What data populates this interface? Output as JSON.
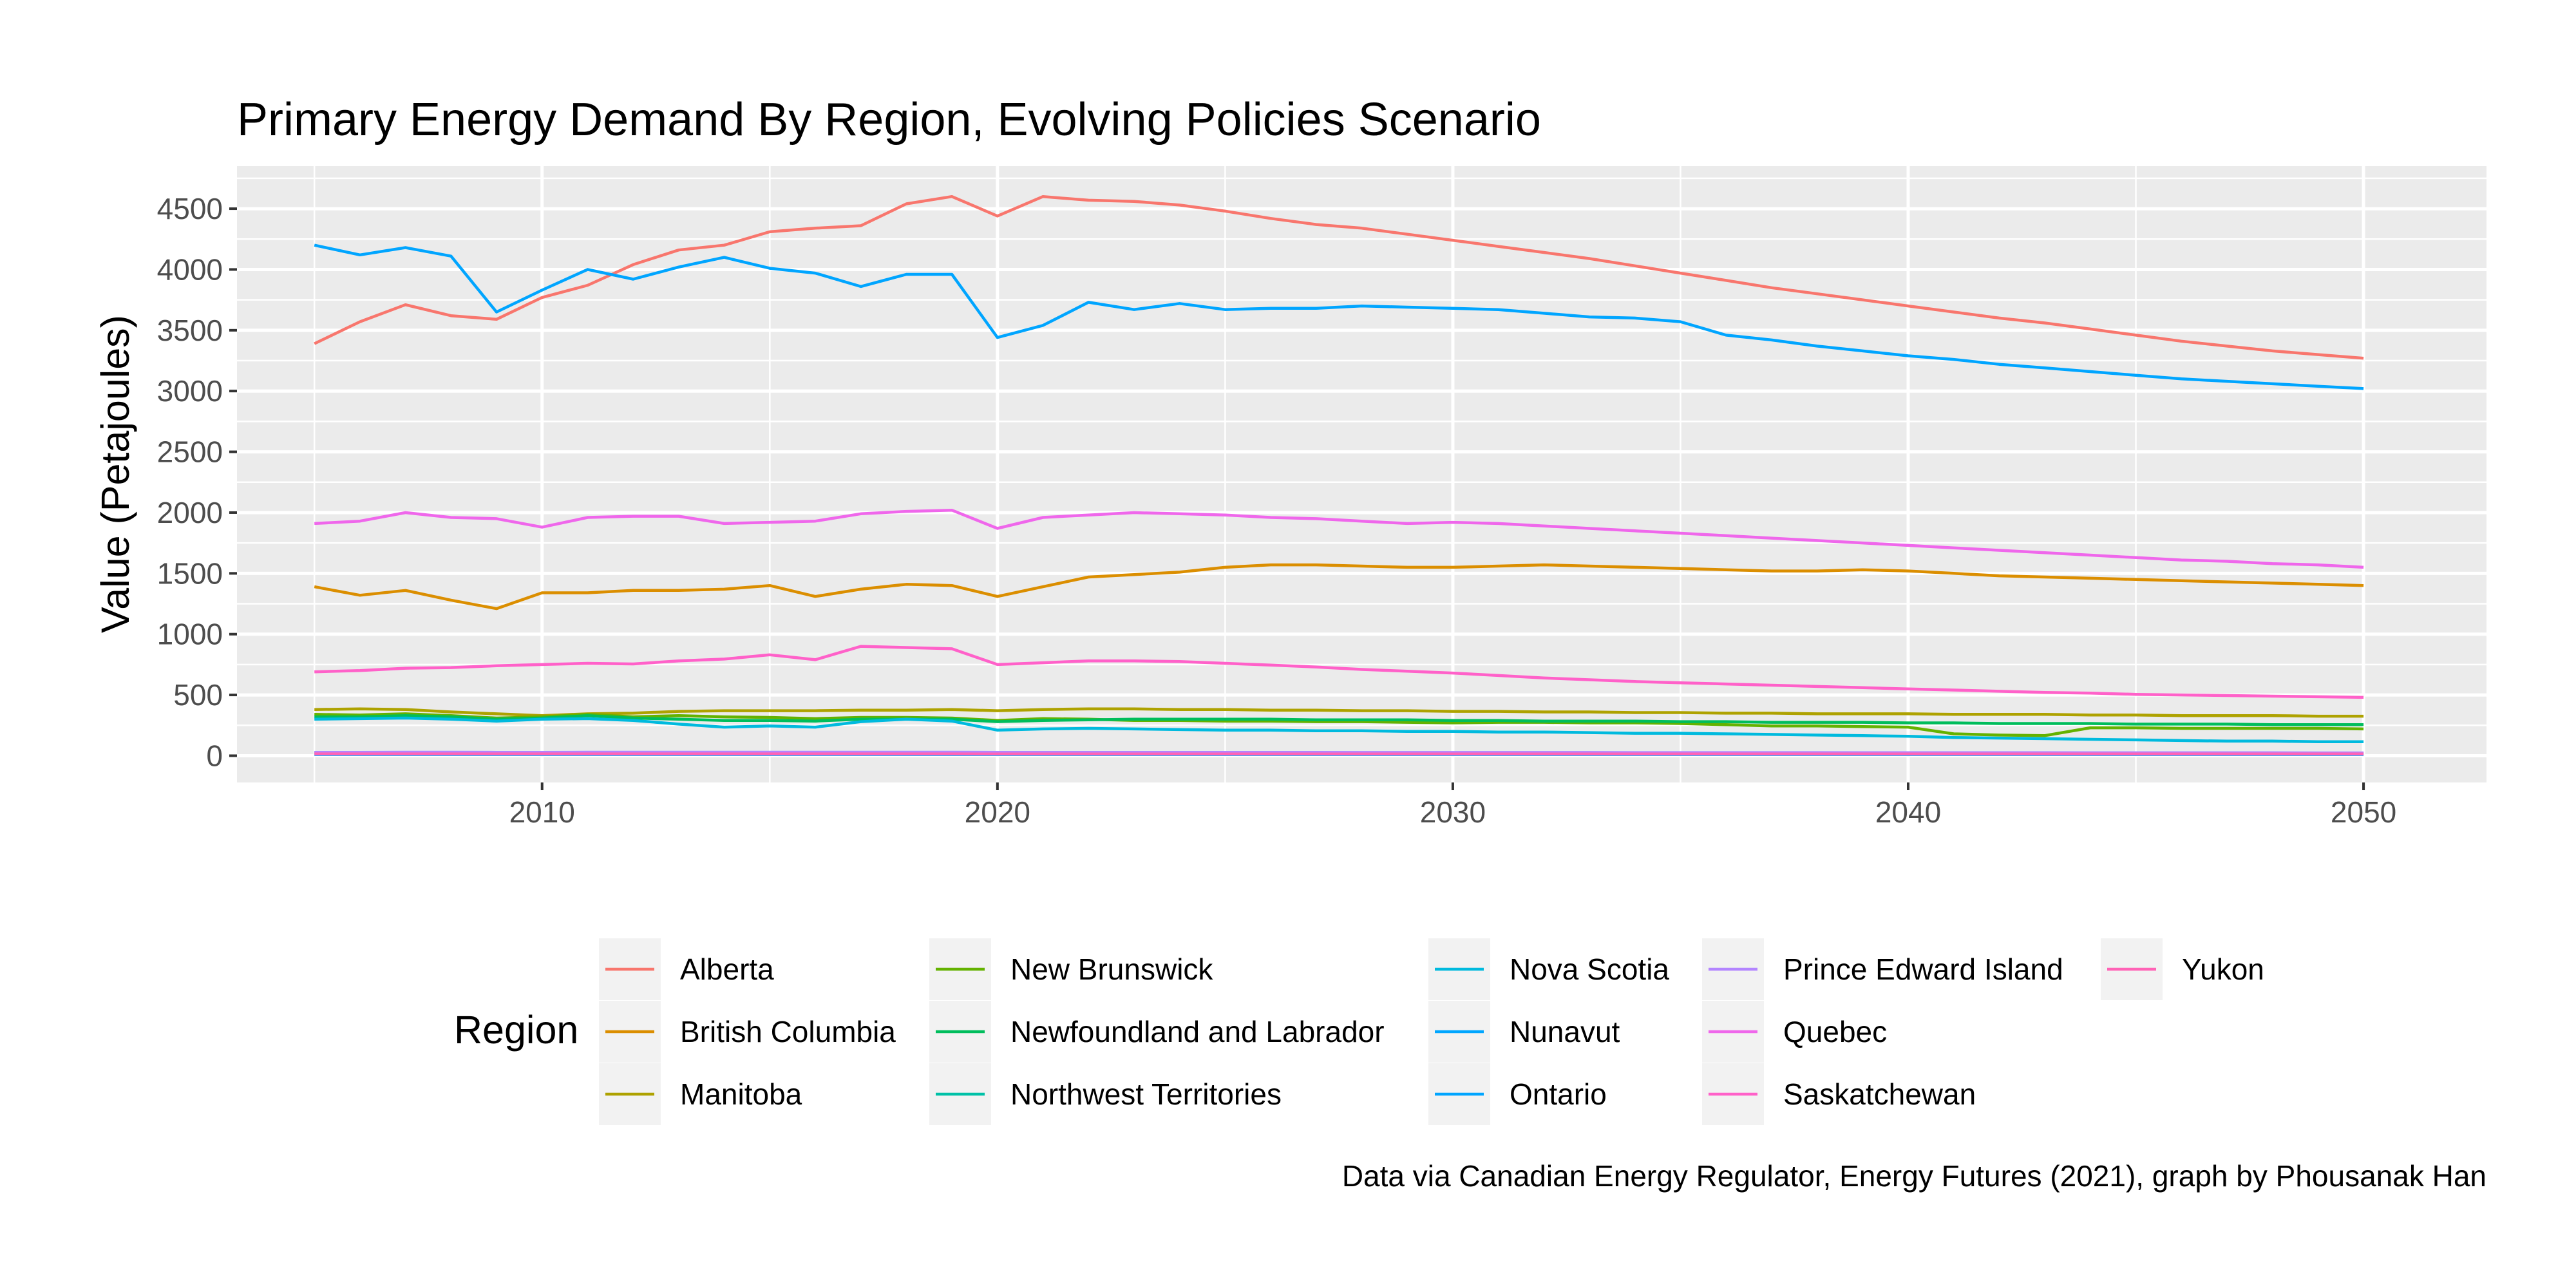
{
  "chart_data": {
    "type": "line",
    "title": "Primary Energy Demand By Region, Evolving Policies Scenario",
    "xlabel": "",
    "ylabel": "Value (Petajoules)",
    "caption": "Data via Canadian Energy Regulator, Energy Futures (2021), graph by Phousanak Han",
    "legend_title": "Region",
    "legend_position": "bottom",
    "grid": true,
    "xlim": [
      2003.3,
      2052.7
    ],
    "ylim": [
      -220,
      4850
    ],
    "x_ticks": [
      2010,
      2020,
      2030,
      2040,
      2050
    ],
    "y_ticks": [
      0,
      500,
      1000,
      1500,
      2000,
      2500,
      3000,
      3500,
      4000,
      4500
    ],
    "x": [
      2005,
      2006,
      2007,
      2008,
      2009,
      2010,
      2011,
      2012,
      2013,
      2014,
      2015,
      2016,
      2017,
      2018,
      2019,
      2020,
      2021,
      2022,
      2023,
      2024,
      2025,
      2026,
      2027,
      2028,
      2029,
      2030,
      2031,
      2032,
      2033,
      2034,
      2035,
      2036,
      2037,
      2038,
      2039,
      2040,
      2041,
      2042,
      2043,
      2044,
      2045,
      2046,
      2047,
      2048,
      2049,
      2050
    ],
    "series": [
      {
        "name": "Alberta",
        "color": "#F8766D",
        "values": [
          3390,
          3570,
          3710,
          3620,
          3590,
          3770,
          3870,
          4040,
          4160,
          4200,
          4310,
          4340,
          4360,
          4540,
          4600,
          4440,
          4600,
          4570,
          4560,
          4530,
          4480,
          4420,
          4370,
          4340,
          4290,
          4240,
          4190,
          4140,
          4090,
          4030,
          3970,
          3910,
          3850,
          3800,
          3750,
          3700,
          3650,
          3600,
          3560,
          3510,
          3460,
          3410,
          3370,
          3330,
          3300,
          3270
        ]
      },
      {
        "name": "British Columbia",
        "color": "#DB8E00",
        "values": [
          1390,
          1320,
          1360,
          1280,
          1210,
          1340,
          1340,
          1360,
          1360,
          1370,
          1400,
          1310,
          1370,
          1410,
          1400,
          1310,
          1390,
          1470,
          1490,
          1510,
          1550,
          1570,
          1570,
          1560,
          1550,
          1550,
          1560,
          1570,
          1560,
          1550,
          1540,
          1530,
          1520,
          1520,
          1530,
          1520,
          1500,
          1480,
          1470,
          1460,
          1450,
          1440,
          1430,
          1420,
          1410,
          1400
        ]
      },
      {
        "name": "Manitoba",
        "color": "#AEA200",
        "values": [
          380,
          385,
          380,
          360,
          345,
          330,
          345,
          350,
          365,
          370,
          370,
          370,
          375,
          375,
          380,
          370,
          380,
          385,
          385,
          380,
          380,
          375,
          375,
          370,
          370,
          365,
          365,
          360,
          360,
          355,
          355,
          350,
          350,
          345,
          345,
          345,
          340,
          340,
          340,
          335,
          335,
          330,
          330,
          330,
          325,
          325
        ]
      },
      {
        "name": "New Brunswick",
        "color": "#64B200",
        "values": [
          340,
          335,
          345,
          330,
          310,
          320,
          340,
          320,
          330,
          320,
          315,
          305,
          315,
          315,
          310,
          290,
          305,
          300,
          290,
          290,
          285,
          285,
          280,
          280,
          275,
          270,
          275,
          275,
          270,
          270,
          265,
          255,
          245,
          245,
          240,
          235,
          180,
          170,
          165,
          230,
          230,
          225,
          225,
          225,
          225,
          220
        ]
      },
      {
        "name": "Newfoundland and Labrador",
        "color": "#00BD5C",
        "values": [
          320,
          320,
          330,
          320,
          300,
          310,
          330,
          310,
          300,
          290,
          290,
          285,
          300,
          300,
          300,
          280,
          290,
          295,
          300,
          300,
          300,
          300,
          295,
          295,
          295,
          290,
          290,
          285,
          285,
          285,
          280,
          280,
          275,
          275,
          275,
          270,
          270,
          265,
          265,
          265,
          260,
          260,
          260,
          255,
          255,
          255
        ]
      },
      {
        "name": "Northwest Territories",
        "color": "#00C1A7",
        "values": [
          25,
          25,
          25,
          24,
          24,
          24,
          24,
          24,
          24,
          23,
          23,
          23,
          23,
          23,
          23,
          22,
          22,
          22,
          22,
          22,
          22,
          21,
          21,
          21,
          21,
          21,
          21,
          20,
          20,
          20,
          20,
          20,
          20,
          19,
          19,
          19,
          19,
          19,
          19,
          18,
          18,
          18,
          18,
          18,
          18,
          18
        ]
      },
      {
        "name": "Nova Scotia",
        "color": "#00BADE",
        "values": [
          300,
          305,
          310,
          300,
          285,
          300,
          305,
          290,
          260,
          235,
          245,
          235,
          280,
          300,
          285,
          210,
          220,
          225,
          220,
          215,
          210,
          210,
          205,
          205,
          200,
          200,
          195,
          195,
          190,
          185,
          185,
          180,
          175,
          170,
          165,
          160,
          150,
          145,
          140,
          135,
          130,
          125,
          120,
          120,
          115,
          115
        ]
      },
      {
        "name": "Nunavut",
        "color": "#00A6FF",
        "values": [
          10,
          10,
          10,
          10,
          10,
          10,
          10,
          10,
          10,
          10,
          10,
          10,
          10,
          10,
          10,
          10,
          10,
          10,
          10,
          10,
          10,
          10,
          10,
          10,
          10,
          10,
          10,
          10,
          10,
          10,
          10,
          10,
          10,
          10,
          10,
          10,
          10,
          10,
          10,
          10,
          10,
          10,
          10,
          10,
          10,
          10
        ]
      },
      {
        "name": "Ontario",
        "color": "#00A5FF",
        "values": [
          4200,
          4120,
          4180,
          4110,
          3650,
          3830,
          4000,
          3920,
          4020,
          4100,
          4010,
          3970,
          3860,
          3960,
          3960,
          3440,
          3540,
          3730,
          3670,
          3720,
          3670,
          3680,
          3680,
          3700,
          3690,
          3680,
          3670,
          3640,
          3610,
          3600,
          3570,
          3460,
          3420,
          3370,
          3330,
          3290,
          3260,
          3220,
          3190,
          3160,
          3130,
          3100,
          3080,
          3060,
          3040,
          3020
        ]
      },
      {
        "name": "Prince Edward Island",
        "color": "#B385FF",
        "values": [
          28,
          28,
          29,
          29,
          28,
          28,
          29,
          29,
          29,
          29,
          29,
          29,
          29,
          29,
          29,
          28,
          28,
          28,
          28,
          28,
          28,
          28,
          28,
          27,
          27,
          27,
          27,
          27,
          27,
          26,
          26,
          26,
          26,
          26,
          25,
          25,
          25,
          25,
          25,
          24,
          24,
          24,
          24,
          24,
          23,
          23
        ]
      },
      {
        "name": "Quebec",
        "color": "#EF67EB",
        "values": [
          1910,
          1930,
          2000,
          1960,
          1950,
          1880,
          1960,
          1970,
          1970,
          1910,
          1920,
          1930,
          1990,
          2010,
          2020,
          1870,
          1960,
          1980,
          2000,
          1990,
          1980,
          1960,
          1950,
          1930,
          1910,
          1920,
          1910,
          1890,
          1870,
          1850,
          1830,
          1810,
          1790,
          1770,
          1750,
          1730,
          1710,
          1690,
          1670,
          1650,
          1630,
          1610,
          1600,
          1580,
          1570,
          1550
        ]
      },
      {
        "name": "Saskatchewan",
        "color": "#FF61C9",
        "values": [
          690,
          700,
          720,
          725,
          740,
          750,
          760,
          755,
          780,
          795,
          830,
          790,
          900,
          890,
          880,
          750,
          765,
          780,
          780,
          775,
          760,
          745,
          730,
          710,
          695,
          680,
          660,
          640,
          625,
          610,
          600,
          590,
          580,
          570,
          560,
          550,
          540,
          530,
          520,
          515,
          505,
          500,
          495,
          490,
          485,
          480
        ]
      },
      {
        "name": "Yukon",
        "color": "#FF63B6",
        "values": [
          15,
          15,
          15,
          15,
          15,
          15,
          15,
          15,
          15,
          15,
          15,
          15,
          15,
          15,
          15,
          14,
          14,
          14,
          14,
          14,
          14,
          14,
          14,
          14,
          14,
          14,
          14,
          14,
          14,
          14,
          14,
          14,
          14,
          14,
          14,
          14,
          14,
          14,
          14,
          14,
          14,
          14,
          14,
          14,
          14,
          14
        ]
      }
    ]
  }
}
